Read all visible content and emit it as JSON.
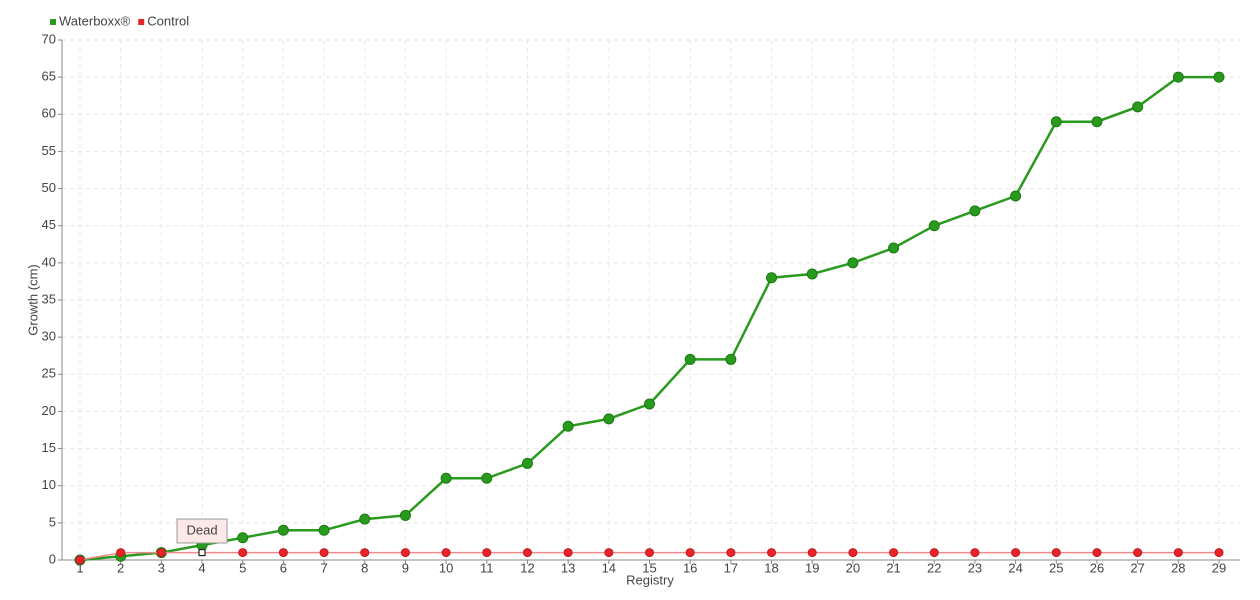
{
  "chart_data": {
    "type": "line",
    "y_label": "Growth (cm)",
    "x_label": "Registry",
    "categories": [
      "1",
      "2",
      "3",
      "4",
      "5",
      "6",
      "7",
      "8",
      "9",
      "10",
      "11",
      "12",
      "13",
      "14",
      "15",
      "16",
      "17",
      "18",
      "19",
      "20",
      "21",
      "22",
      "23",
      "24",
      "25",
      "26",
      "27",
      "28",
      "29"
    ],
    "series": [
      {
        "name": "Waterboxx®",
        "color": "#2a9a1f",
        "values": [
          0,
          0.5,
          1,
          2,
          3,
          4,
          4,
          5.5,
          6,
          11,
          11,
          13,
          18,
          19,
          21,
          27,
          27,
          38,
          38.5,
          40,
          42,
          45,
          47,
          49,
          59,
          59,
          61,
          65,
          65
        ]
      },
      {
        "name": "Control",
        "color": "#e8232a",
        "values": [
          0,
          1,
          1,
          1,
          1,
          1,
          1,
          1,
          1,
          1,
          1,
          1,
          1,
          1,
          1,
          1,
          1,
          1,
          1,
          1,
          1,
          1,
          1,
          1,
          1,
          1,
          1,
          1,
          1
        ]
      }
    ],
    "annotations": [
      {
        "label": "Dead",
        "category": "4"
      }
    ],
    "ylim": [
      0,
      70
    ],
    "yticks": [
      0,
      5,
      10,
      15,
      20,
      25,
      30,
      35,
      40,
      45,
      50,
      55,
      60,
      65,
      70
    ],
    "grid": true
  }
}
